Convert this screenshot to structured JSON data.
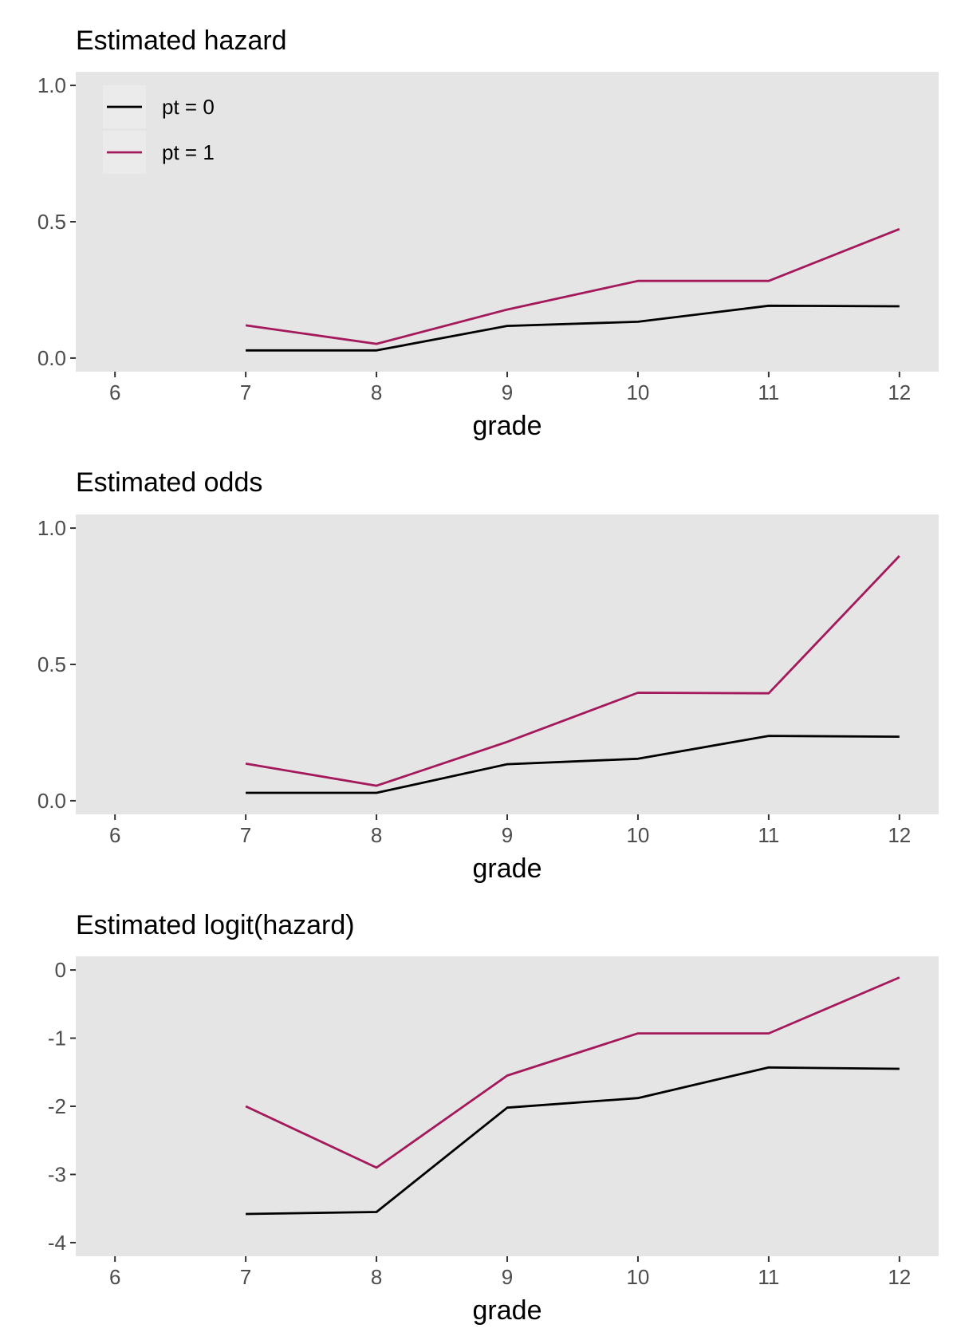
{
  "chart_data": [
    {
      "type": "line",
      "title": "Estimated hazard",
      "xlabel": "grade",
      "ylabel": "",
      "x_ticks": [
        "6",
        "7",
        "8",
        "9",
        "10",
        "11",
        "12"
      ],
      "y_ticks": [
        "0.0",
        "0.5",
        "1.0"
      ],
      "xlim": [
        5.7,
        12.3
      ],
      "ylim": [
        -0.05,
        1.05
      ],
      "grid": false,
      "legend": {
        "placement": "top-left",
        "entries": [
          "pt = 0",
          "pt = 1"
        ]
      },
      "series": [
        {
          "name": "pt = 0",
          "color": "#000000",
          "x": [
            7,
            8,
            9,
            10,
            11,
            12
          ],
          "y": [
            0.028,
            0.028,
            0.118,
            0.133,
            0.192,
            0.19
          ]
        },
        {
          "name": "pt = 1",
          "color": "#a3195b",
          "x": [
            7,
            8,
            9,
            10,
            11,
            12
          ],
          "y": [
            0.12,
            0.052,
            0.178,
            0.283,
            0.283,
            0.473
          ]
        }
      ]
    },
    {
      "type": "line",
      "title": "Estimated odds",
      "xlabel": "grade",
      "ylabel": "",
      "x_ticks": [
        "6",
        "7",
        "8",
        "9",
        "10",
        "11",
        "12"
      ],
      "y_ticks": [
        "0.0",
        "0.5",
        "1.0"
      ],
      "xlim": [
        5.7,
        12.3
      ],
      "ylim": [
        -0.05,
        1.05
      ],
      "grid": false,
      "series": [
        {
          "name": "pt = 0",
          "color": "#000000",
          "x": [
            7,
            8,
            9,
            10,
            11,
            12
          ],
          "y": [
            0.029,
            0.029,
            0.134,
            0.154,
            0.238,
            0.235
          ]
        },
        {
          "name": "pt = 1",
          "color": "#a3195b",
          "x": [
            7,
            8,
            9,
            10,
            11,
            12
          ],
          "y": [
            0.136,
            0.055,
            0.216,
            0.396,
            0.394,
            0.898
          ]
        }
      ]
    },
    {
      "type": "line",
      "title": "Estimated logit(hazard)",
      "xlabel": "grade",
      "ylabel": "",
      "x_ticks": [
        "6",
        "7",
        "8",
        "9",
        "10",
        "11",
        "12"
      ],
      "y_ticks": [
        "-4",
        "-3",
        "-2",
        "-1",
        "0"
      ],
      "xlim": [
        5.7,
        12.3
      ],
      "ylim": [
        -4.2,
        0.2
      ],
      "grid": false,
      "series": [
        {
          "name": "pt = 0",
          "color": "#000000",
          "x": [
            7,
            8,
            9,
            10,
            11,
            12
          ],
          "y": [
            -3.58,
            -3.55,
            -2.02,
            -1.88,
            -1.43,
            -1.45
          ]
        },
        {
          "name": "pt = 1",
          "color": "#a3195b",
          "x": [
            7,
            8,
            9,
            10,
            11,
            12
          ],
          "y": [
            -2.0,
            -2.9,
            -1.55,
            -0.93,
            -0.93,
            -0.11
          ]
        }
      ]
    }
  ],
  "style": {
    "panel_bg": "#e5e5e5",
    "legend_key_bg": "#ebebeb",
    "tick_color": "#333333"
  }
}
